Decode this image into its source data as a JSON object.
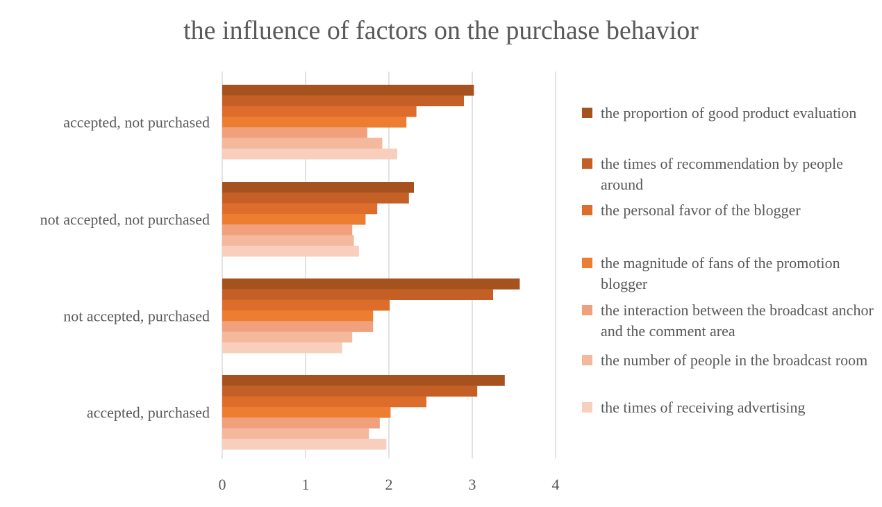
{
  "chart_data": {
    "type": "bar",
    "orientation": "horizontal",
    "title": "the influence of factors on the purchase behavior",
    "xlabel": "",
    "ylabel": "",
    "xlim": [
      0,
      4
    ],
    "ticks": [
      "0",
      "1",
      "2",
      "3",
      "4"
    ],
    "grid": true,
    "legend_position": "right",
    "categories": [
      "accepted, not purchased",
      "not accepted, not purchased",
      "not accepted, purchased",
      "accepted, purchased"
    ],
    "series": [
      {
        "name": "the proportion of good product evaluation",
        "color": "#a5521f",
        "values": [
          3.02,
          2.3,
          3.57,
          3.39
        ]
      },
      {
        "name": "the times of recommendation by people around",
        "color": "#c45f26",
        "values": [
          2.9,
          2.24,
          3.25,
          3.06
        ]
      },
      {
        "name": "the personal favor of the blogger",
        "color": "#de6c2a",
        "values": [
          2.33,
          1.86,
          2.01,
          2.45
        ]
      },
      {
        "name": "the magnitude of fans of the promotion blogger",
        "color": "#ed7d31",
        "values": [
          2.21,
          1.72,
          1.81,
          2.02
        ]
      },
      {
        "name": "the interaction between the broadcast anchor and the comment area",
        "color": "#f0a07a",
        "values": [
          1.74,
          1.56,
          1.81,
          1.89
        ]
      },
      {
        "name": "the number of people in the broadcast room",
        "color": "#f4b89c",
        "values": [
          1.92,
          1.58,
          1.56,
          1.76
        ]
      },
      {
        "name": "the times of receiving advertising",
        "color": "#f8cfbd",
        "values": [
          2.1,
          1.64,
          1.44,
          1.97
        ]
      }
    ]
  }
}
